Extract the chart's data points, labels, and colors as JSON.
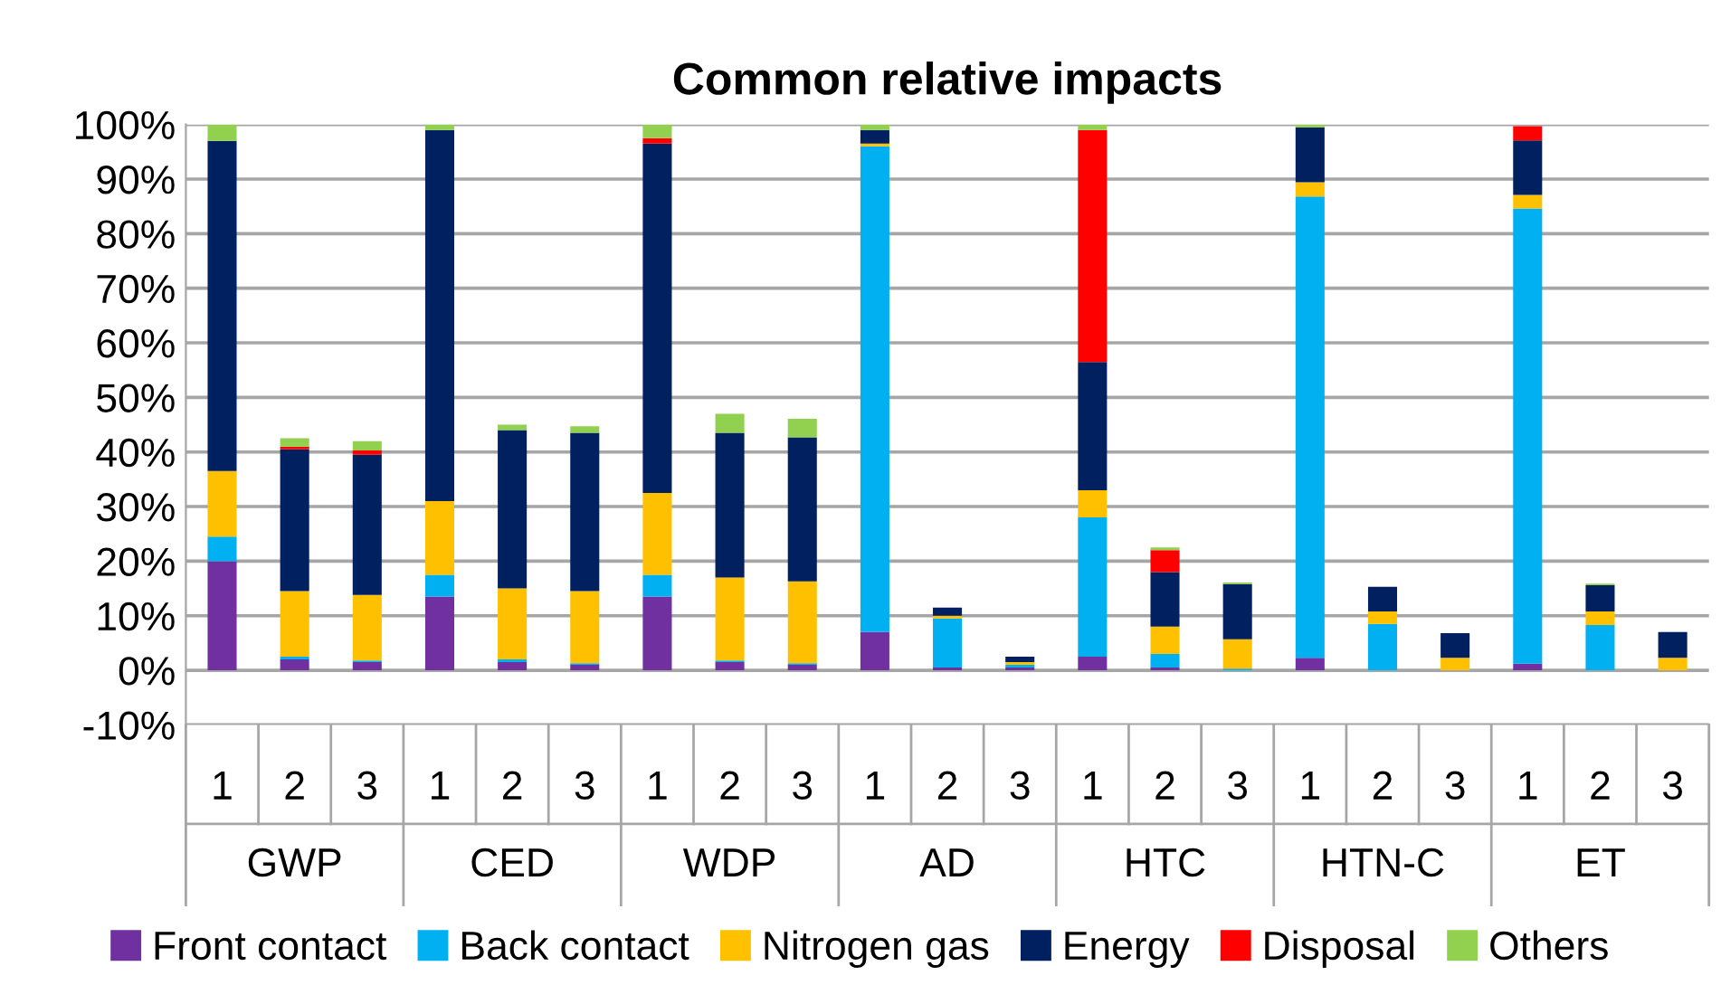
{
  "chart_data": {
    "type": "bar",
    "title": "Common relative impacts",
    "stacked": true,
    "categories": [
      "1",
      "2",
      "3",
      "1",
      "2",
      "3",
      "1",
      "2",
      "3",
      "1",
      "2",
      "3",
      "1",
      "2",
      "3",
      "1",
      "2",
      "3",
      "1",
      "2",
      "3"
    ],
    "annotations": [
      "GWP",
      "CED",
      "WDP",
      "AD",
      "HTC",
      "HTN-C",
      "ET"
    ],
    "series": [
      {
        "name": "Front contact",
        "color": "#7030a0",
        "values": [
          20,
          2,
          1.5,
          13.5,
          1.5,
          1,
          13.5,
          1.5,
          1,
          7,
          0.5,
          0.5,
          2.5,
          0.5,
          0,
          2.3,
          0,
          0,
          1.2,
          0,
          0
        ]
      },
      {
        "name": "Back contact",
        "color": "#00b0f0",
        "values": [
          4.5,
          0.5,
          0.3,
          4,
          0.5,
          0.3,
          4,
          0.3,
          0.3,
          89,
          9,
          0.5,
          25.5,
          2.5,
          0.3,
          84.5,
          8.5,
          0,
          83.4,
          8.3,
          0
        ]
      },
      {
        "name": "Nitrogen gas",
        "color": "#ffc000",
        "values": [
          12,
          12,
          12,
          13.5,
          13,
          13.2,
          15,
          15.2,
          15,
          0.5,
          0.5,
          0.5,
          5,
          5,
          5.4,
          2.6,
          2.3,
          2.3,
          2.5,
          2.5,
          2.3
        ]
      },
      {
        "name": "Energy",
        "color": "#002060",
        "values": [
          60.5,
          26,
          25.7,
          68,
          29,
          29,
          64,
          26.5,
          26.4,
          2.5,
          1.5,
          1,
          23.5,
          10,
          10.1,
          10.1,
          4.5,
          4.5,
          10,
          4.8,
          4.7
        ]
      },
      {
        "name": "Disposal",
        "color": "#ff0000",
        "values": [
          0,
          0.5,
          0.8,
          0,
          0,
          0,
          1,
          0,
          0,
          0,
          0,
          0,
          42.5,
          4,
          0,
          0,
          0,
          0,
          2.6,
          0,
          0
        ]
      },
      {
        "name": "Others",
        "color": "#92d050",
        "values": [
          3,
          1.5,
          1.7,
          1,
          1,
          1.2,
          2.5,
          3.5,
          3.4,
          1,
          0,
          0,
          1,
          0.5,
          0.3,
          0.5,
          0,
          0,
          0,
          0.3,
          0
        ]
      }
    ],
    "ylim": [
      -10,
      100
    ],
    "yticks": [
      {
        "value": -10,
        "label": "-10%"
      },
      {
        "value": 0,
        "label": "0%"
      },
      {
        "value": 10,
        "label": "10%"
      },
      {
        "value": 20,
        "label": "20%"
      },
      {
        "value": 30,
        "label": "30%"
      },
      {
        "value": 40,
        "label": "40%"
      },
      {
        "value": 50,
        "label": "50%"
      },
      {
        "value": 60,
        "label": "60%"
      },
      {
        "value": 70,
        "label": "70%"
      },
      {
        "value": 80,
        "label": "80%"
      },
      {
        "value": 90,
        "label": "90%"
      },
      {
        "value": 100,
        "label": "100%"
      }
    ],
    "grid": "y",
    "legend": "bottom"
  }
}
